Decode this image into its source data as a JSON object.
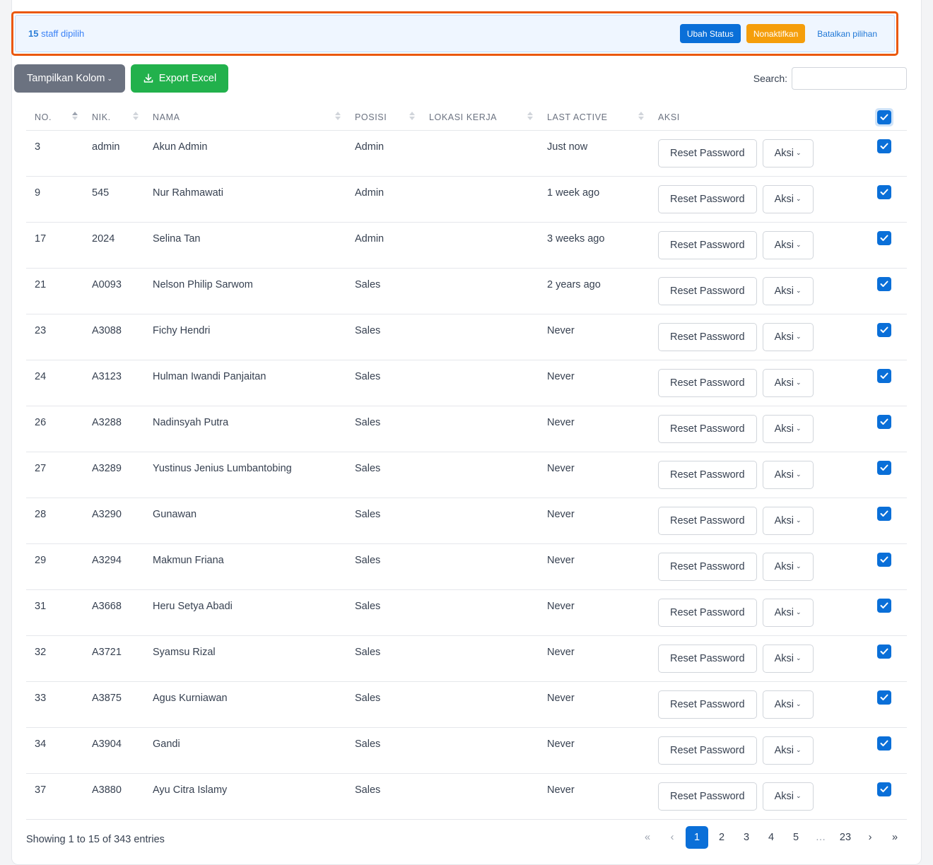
{
  "bulk": {
    "count": "15",
    "label": " staff dipilih",
    "btn_status": "Ubah Status",
    "btn_deactivate": "Nonaktifkan",
    "btn_cancel": "Batalkan pilihan"
  },
  "toolbar": {
    "columns_label": "Tampilkan Kolom",
    "export_label": "Export Excel",
    "search_label": "Search:",
    "search_value": ""
  },
  "columns": [
    "NO.",
    "NIK.",
    "NAMA",
    "POSISI",
    "LOKASI KERJA",
    "LAST ACTIVE",
    "AKSI"
  ],
  "rows": [
    {
      "no": "3",
      "nik": "admin",
      "nama": "Akun Admin",
      "posisi": "Admin",
      "lokasi": "",
      "last_active": "Just now",
      "checked": true
    },
    {
      "no": "9",
      "nik": "545",
      "nama": "Nur Rahmawati",
      "posisi": "Admin",
      "lokasi": "",
      "last_active": "1 week ago",
      "checked": true
    },
    {
      "no": "17",
      "nik": "2024",
      "nama": "Selina Tan",
      "posisi": "Admin",
      "lokasi": "",
      "last_active": "3 weeks ago",
      "checked": true
    },
    {
      "no": "21",
      "nik": "A0093",
      "nama": "Nelson Philip Sarwom",
      "posisi": "Sales",
      "lokasi": "",
      "last_active": "2 years ago",
      "checked": true
    },
    {
      "no": "23",
      "nik": "A3088",
      "nama": "Fichy Hendri",
      "posisi": "Sales",
      "lokasi": "",
      "last_active": "Never",
      "checked": true
    },
    {
      "no": "24",
      "nik": "A3123",
      "nama": "Hulman Iwandi Panjaitan",
      "posisi": "Sales",
      "lokasi": "",
      "last_active": "Never",
      "checked": true
    },
    {
      "no": "26",
      "nik": "A3288",
      "nama": "Nadinsyah Putra",
      "posisi": "Sales",
      "lokasi": "",
      "last_active": "Never",
      "checked": true
    },
    {
      "no": "27",
      "nik": "A3289",
      "nama": "Yustinus Jenius Lumbantobing",
      "posisi": "Sales",
      "lokasi": "",
      "last_active": "Never",
      "checked": true
    },
    {
      "no": "28",
      "nik": "A3290",
      "nama": "Gunawan",
      "posisi": "Sales",
      "lokasi": "",
      "last_active": "Never",
      "checked": true
    },
    {
      "no": "29",
      "nik": "A3294",
      "nama": "Makmun Friana",
      "posisi": "Sales",
      "lokasi": "",
      "last_active": "Never",
      "checked": true
    },
    {
      "no": "31",
      "nik": "A3668",
      "nama": "Heru Setya Abadi",
      "posisi": "Sales",
      "lokasi": "",
      "last_active": "Never",
      "checked": true
    },
    {
      "no": "32",
      "nik": "A3721",
      "nama": "Syamsu Rizal",
      "posisi": "Sales",
      "lokasi": "",
      "last_active": "Never",
      "checked": true
    },
    {
      "no": "33",
      "nik": "A3875",
      "nama": "Agus Kurniawan",
      "posisi": "Sales",
      "lokasi": "",
      "last_active": "Never",
      "checked": true
    },
    {
      "no": "34",
      "nik": "A3904",
      "nama": "Gandi",
      "posisi": "Sales",
      "lokasi": "",
      "last_active": "Never",
      "checked": true
    },
    {
      "no": "37",
      "nik": "A3880",
      "nama": "Ayu Citra Islamy",
      "posisi": "Sales",
      "lokasi": "",
      "last_active": "Never",
      "checked": true
    }
  ],
  "row_actions": {
    "reset_label": "Reset Password",
    "aksi_label": "Aksi"
  },
  "footer": {
    "info": "Showing 1 to 15 of 343 entries",
    "pages": [
      "«",
      "‹",
      "1",
      "2",
      "3",
      "4",
      "5",
      "…",
      "23",
      "›",
      "»"
    ],
    "current_page": "1"
  },
  "colors": {
    "primary": "#0a6fd8",
    "warning": "#f59e0b",
    "success": "#22b14c",
    "secondary": "#6b7280",
    "highlight_border": "#ea580c"
  },
  "icons": {
    "export": "download-icon",
    "dropdown": "chevron-down-icon",
    "checkbox": "check-icon"
  }
}
